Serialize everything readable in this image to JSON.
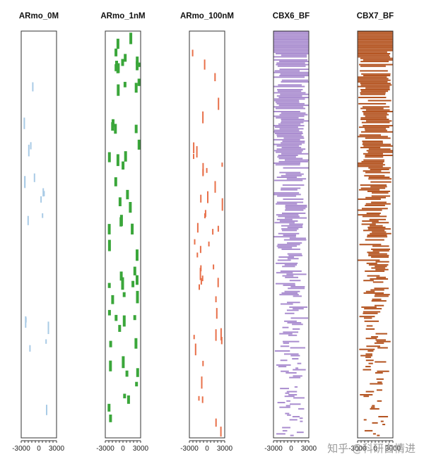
{
  "chart_data": {
    "type": "heatmap",
    "x_tick_labels": [
      "-3000",
      "0",
      "3000"
    ],
    "xlim": [
      -3000,
      3000
    ],
    "panels": [
      {
        "title": "ARmo_0M",
        "color": "#a9cbe6",
        "density": 0.018,
        "seed": 11
      },
      {
        "title": "ARmo_1nM",
        "color": "#3aa63a",
        "density": 0.06,
        "seed": 23
      },
      {
        "title": "ARmo_100nM",
        "color": "#e8704a",
        "density": 0.045,
        "seed": 37
      },
      {
        "title": "CBX6_BF",
        "color": "#a98ccf",
        "density": 0.55,
        "seed": 41,
        "gradient": true
      },
      {
        "title": "CBX7_BF",
        "color": "#b3521e",
        "density": 0.6,
        "seed": 53,
        "gradient": true
      }
    ]
  },
  "watermark": "知乎 @科研白情进"
}
